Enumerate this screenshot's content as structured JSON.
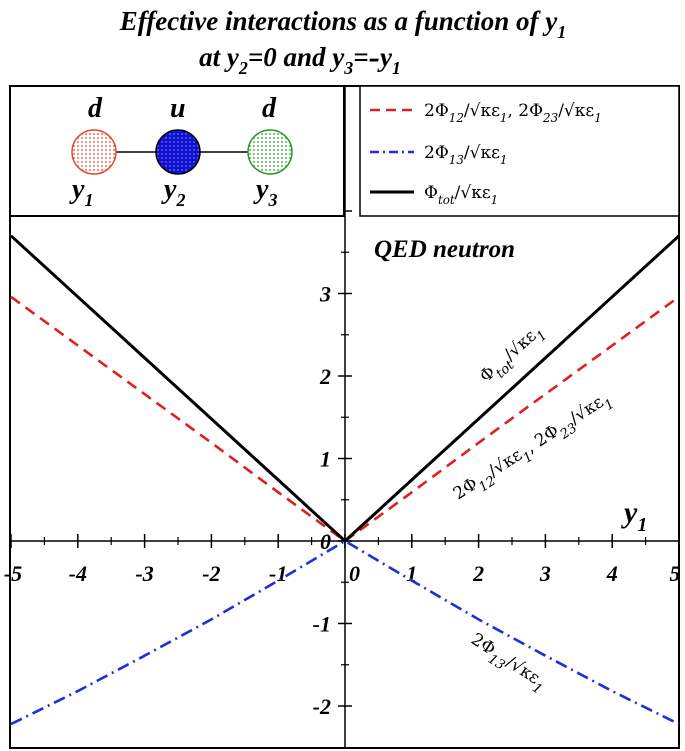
{
  "chart_data": {
    "type": "line",
    "title_line1": "Effective interactions as a function of y",
    "title_line1_sub": "1",
    "title_line2_parts": [
      "at y",
      "2",
      "=0 and y",
      "3",
      "=",
      "-",
      "y",
      "1"
    ],
    "xlabel_main": "y",
    "xlabel_sub": "1",
    "xlim": [
      -5,
      5
    ],
    "ylim": [
      -2.3,
      4.5
    ],
    "xticks": [
      "-5",
      "-4",
      "-3",
      "-2",
      "-1",
      "0",
      "1",
      "2",
      "3",
      "4",
      "5"
    ],
    "yticks": [
      "-2",
      "-1",
      "0",
      "1",
      "2",
      "3"
    ],
    "annotation_text": "QED neutron",
    "diagram": {
      "quarks": [
        {
          "flavor": "d",
          "position": "y",
          "position_sub": "1",
          "color": "#e8463c"
        },
        {
          "flavor": "u",
          "position": "y",
          "position_sub": "2",
          "color": "#1010d0"
        },
        {
          "flavor": "d",
          "position": "y",
          "position_sub": "3",
          "color": "#2a9a2a"
        }
      ]
    },
    "series": [
      {
        "name": "2Φ12/√κε1, 2Φ23/√κε1",
        "legend_label": [
          "2Φ",
          "12",
          "/",
          "κε",
          "1",
          ",  2Φ",
          "23",
          "/",
          "κε",
          "1"
        ],
        "color": "#e02020",
        "dash": "dashed",
        "x": [
          -5,
          -4,
          -3,
          -2,
          -1,
          0,
          1,
          2,
          3,
          4,
          5
        ],
        "y": [
          2.96,
          2.37,
          1.78,
          1.19,
          0.59,
          0,
          0.59,
          1.19,
          1.78,
          2.37,
          2.96
        ]
      },
      {
        "name": "2Φ13/√κε1",
        "legend_label": [
          "2Φ",
          "13",
          "/",
          "κε",
          "1"
        ],
        "color": "#1f2fd8",
        "dash": "dashdot",
        "x": [
          -5,
          -4,
          -3,
          -2,
          -1,
          0,
          1,
          2,
          3,
          4,
          5
        ],
        "y": [
          -2.22,
          -1.82,
          -1.39,
          -0.95,
          -0.48,
          0,
          -0.48,
          -0.95,
          -1.39,
          -1.82,
          -2.22
        ]
      },
      {
        "name": "Φtot/√κε1",
        "legend_label": [
          "Φ",
          "tot",
          "/",
          "κε",
          "1"
        ],
        "color": "#000000",
        "dash": "solid",
        "x": [
          -5,
          -4,
          -3,
          -2,
          -1,
          0,
          1,
          2,
          3,
          4,
          5
        ],
        "y": [
          3.7,
          2.96,
          2.22,
          1.48,
          0.74,
          0,
          0.74,
          1.48,
          2.22,
          2.96,
          3.7
        ]
      }
    ],
    "inline_labels": [
      {
        "parts": [
          "Φ",
          "tot",
          "/",
          "κε",
          "1"
        ]
      },
      {
        "parts": [
          "2Φ",
          "12",
          "/",
          "κε",
          "1",
          ",  2Φ",
          "23",
          "/",
          "κε",
          "1"
        ]
      },
      {
        "parts": [
          "2Φ",
          "13",
          "/",
          "κε",
          "1"
        ]
      }
    ]
  }
}
